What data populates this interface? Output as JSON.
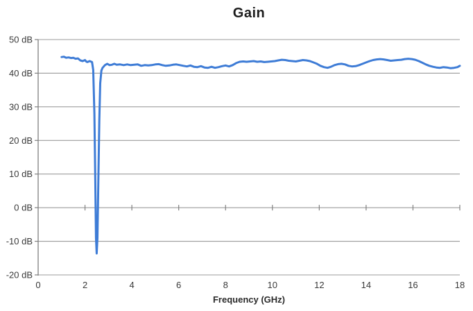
{
  "chart_data": {
    "type": "line",
    "title": "Gain",
    "xlabel": "Frequency (GHz)",
    "ylabel": "",
    "xlim": [
      0,
      18
    ],
    "ylim": [
      -20,
      50
    ],
    "x_ticks": [
      0,
      2,
      4,
      6,
      8,
      10,
      12,
      14,
      16,
      18
    ],
    "x_tick_labels": [
      "0",
      "2",
      "4",
      "6",
      "8",
      "10",
      "12",
      "14",
      "16",
      "18"
    ],
    "y_ticks": [
      50,
      40,
      30,
      20,
      10,
      0,
      -10,
      -20
    ],
    "y_tick_labels": [
      "50 dB",
      "40 dB",
      "30 dB",
      "20 dB",
      "10 dB",
      "0 dB",
      "-10 dB",
      "-20 dB"
    ],
    "grid": "horizontal",
    "legend": "none",
    "colors": {
      "line": "#3e7cd6",
      "grid": "#9b9b9b",
      "axis": "#7f7f7f",
      "tick_text": "#3a3a3a",
      "title_text": "#1c1c1c"
    },
    "series": [
      {
        "name": "Gain",
        "points": [
          [
            1.0,
            44.8
          ],
          [
            1.1,
            44.9
          ],
          [
            1.2,
            44.6
          ],
          [
            1.3,
            44.7
          ],
          [
            1.4,
            44.5
          ],
          [
            1.5,
            44.6
          ],
          [
            1.6,
            44.3
          ],
          [
            1.7,
            44.4
          ],
          [
            1.8,
            43.8
          ],
          [
            1.9,
            43.6
          ],
          [
            2.0,
            43.9
          ],
          [
            2.05,
            43.5
          ],
          [
            2.1,
            43.3
          ],
          [
            2.2,
            43.6
          ],
          [
            2.3,
            43.3
          ],
          [
            2.35,
            41.0
          ],
          [
            2.4,
            28.0
          ],
          [
            2.44,
            8.0
          ],
          [
            2.47,
            -9.0
          ],
          [
            2.5,
            -13.6
          ],
          [
            2.53,
            -9.0
          ],
          [
            2.57,
            8.0
          ],
          [
            2.61,
            26.0
          ],
          [
            2.65,
            37.0
          ],
          [
            2.7,
            40.8
          ],
          [
            2.75,
            41.6
          ],
          [
            2.85,
            42.4
          ],
          [
            2.95,
            42.8
          ],
          [
            3.05,
            42.4
          ],
          [
            3.15,
            42.5
          ],
          [
            3.25,
            42.8
          ],
          [
            3.35,
            42.5
          ],
          [
            3.5,
            42.6
          ],
          [
            3.65,
            42.4
          ],
          [
            3.8,
            42.6
          ],
          [
            3.95,
            42.4
          ],
          [
            4.1,
            42.5
          ],
          [
            4.25,
            42.6
          ],
          [
            4.4,
            42.2
          ],
          [
            4.55,
            42.4
          ],
          [
            4.7,
            42.3
          ],
          [
            4.85,
            42.4
          ],
          [
            5.0,
            42.6
          ],
          [
            5.15,
            42.7
          ],
          [
            5.3,
            42.4
          ],
          [
            5.45,
            42.2
          ],
          [
            5.6,
            42.3
          ],
          [
            5.75,
            42.5
          ],
          [
            5.9,
            42.6
          ],
          [
            6.05,
            42.4
          ],
          [
            6.2,
            42.2
          ],
          [
            6.35,
            42.0
          ],
          [
            6.5,
            42.3
          ],
          [
            6.65,
            41.9
          ],
          [
            6.8,
            41.8
          ],
          [
            6.95,
            42.1
          ],
          [
            7.1,
            41.7
          ],
          [
            7.25,
            41.6
          ],
          [
            7.4,
            41.9
          ],
          [
            7.55,
            41.6
          ],
          [
            7.7,
            41.8
          ],
          [
            7.85,
            42.1
          ],
          [
            8.0,
            42.3
          ],
          [
            8.15,
            42.0
          ],
          [
            8.3,
            42.4
          ],
          [
            8.45,
            43.0
          ],
          [
            8.6,
            43.4
          ],
          [
            8.75,
            43.5
          ],
          [
            8.9,
            43.4
          ],
          [
            9.05,
            43.5
          ],
          [
            9.2,
            43.6
          ],
          [
            9.35,
            43.4
          ],
          [
            9.5,
            43.5
          ],
          [
            9.65,
            43.3
          ],
          [
            9.8,
            43.4
          ],
          [
            9.95,
            43.5
          ],
          [
            10.1,
            43.6
          ],
          [
            10.25,
            43.8
          ],
          [
            10.4,
            44.0
          ],
          [
            10.55,
            43.9
          ],
          [
            10.7,
            43.7
          ],
          [
            10.85,
            43.6
          ],
          [
            11.0,
            43.5
          ],
          [
            11.15,
            43.7
          ],
          [
            11.3,
            43.9
          ],
          [
            11.45,
            43.8
          ],
          [
            11.6,
            43.6
          ],
          [
            11.75,
            43.2
          ],
          [
            11.9,
            42.8
          ],
          [
            12.05,
            42.2
          ],
          [
            12.2,
            41.8
          ],
          [
            12.35,
            41.6
          ],
          [
            12.5,
            41.9
          ],
          [
            12.65,
            42.4
          ],
          [
            12.8,
            42.7
          ],
          [
            12.95,
            42.8
          ],
          [
            13.1,
            42.6
          ],
          [
            13.25,
            42.2
          ],
          [
            13.4,
            42.0
          ],
          [
            13.55,
            42.1
          ],
          [
            13.7,
            42.4
          ],
          [
            13.85,
            42.8
          ],
          [
            14.0,
            43.2
          ],
          [
            14.15,
            43.6
          ],
          [
            14.3,
            43.9
          ],
          [
            14.45,
            44.1
          ],
          [
            14.6,
            44.2
          ],
          [
            14.75,
            44.1
          ],
          [
            14.9,
            43.9
          ],
          [
            15.05,
            43.7
          ],
          [
            15.2,
            43.8
          ],
          [
            15.35,
            43.9
          ],
          [
            15.5,
            44.0
          ],
          [
            15.65,
            44.2
          ],
          [
            15.8,
            44.3
          ],
          [
            15.95,
            44.2
          ],
          [
            16.1,
            44.0
          ],
          [
            16.25,
            43.6
          ],
          [
            16.4,
            43.1
          ],
          [
            16.55,
            42.6
          ],
          [
            16.7,
            42.2
          ],
          [
            16.85,
            41.9
          ],
          [
            17.0,
            41.7
          ],
          [
            17.15,
            41.6
          ],
          [
            17.3,
            41.8
          ],
          [
            17.45,
            41.7
          ],
          [
            17.6,
            41.5
          ],
          [
            17.75,
            41.6
          ],
          [
            17.9,
            41.8
          ],
          [
            18.0,
            42.2
          ]
        ]
      }
    ]
  }
}
